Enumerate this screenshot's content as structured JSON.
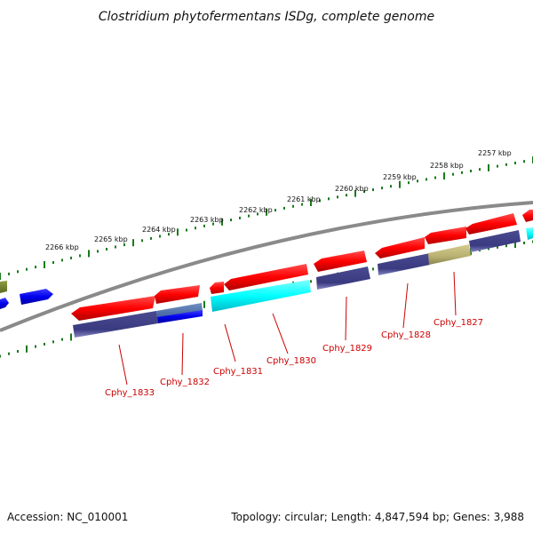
{
  "header": {
    "title": "Clostridium phytofermentans ISDg, complete genome"
  },
  "footer": {
    "accession": "Accession: NC_010001",
    "summary": "Topology: circular; Length: 4,847,594 bp; Genes: 3,988"
  },
  "scale": {
    "labels": [
      "2266 kbp",
      "2265 kbp",
      "2264 kbp",
      "2263 kbp",
      "2262 kbp",
      "2261 kbp",
      "2260 kbp",
      "2259 kbp",
      "2258 kbp",
      "2257 kbp"
    ]
  },
  "genes": {
    "labels": [
      "Cphy_1833",
      "Cphy_1832",
      "Cphy_1831",
      "Cphy_1830",
      "Cphy_1829",
      "Cphy_1828",
      "Cphy_1827"
    ]
  },
  "colors": {
    "backbone": "#8a8a8a",
    "tick": "#1a7a1a",
    "cds_forward": "#ff0000",
    "cds_reverse": "#3f3f8f",
    "cyan_feature": "#00ffff",
    "blue_feature": "#0000ee",
    "olive_feature": "#b8b070",
    "label": "#cc0000"
  }
}
